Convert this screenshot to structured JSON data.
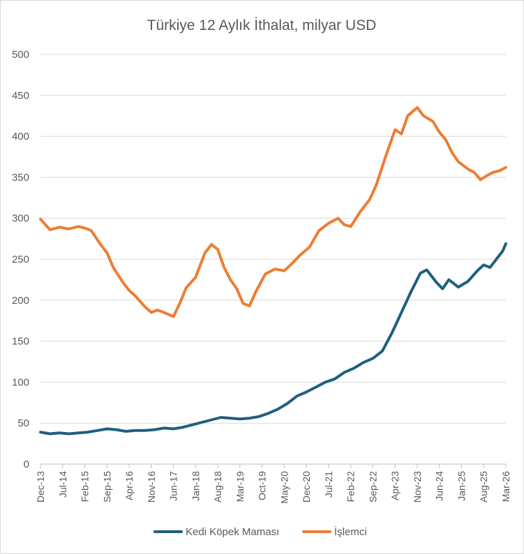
{
  "chart_data": {
    "type": "line",
    "title": "Türkiye 12 Aylık İthalat, milyar USD",
    "xlabel": "",
    "ylabel": "",
    "ylim": [
      0,
      500
    ],
    "yticks": [
      0,
      50,
      100,
      150,
      200,
      250,
      300,
      350,
      400,
      450,
      500
    ],
    "grid": true,
    "legend_position": "bottom",
    "x_start": "Dec-13",
    "x_end": "Mar-26",
    "x_tick_labels": [
      "Dec-13",
      "Jul-14",
      "Feb-15",
      "Sep-15",
      "Apr-16",
      "Nov-16",
      "Jun-17",
      "Jan-18",
      "Aug-18",
      "Mar-19",
      "Oct-19",
      "May-20",
      "Dec-20",
      "Jul-21",
      "Feb-22",
      "Sep-22",
      "Apr-23",
      "Nov-23",
      "Jun-24",
      "Jan-25",
      "Aug-25",
      "Mar-26"
    ],
    "series": [
      {
        "name": "Kedi Köpek Maması",
        "color": "#1f5f7f",
        "points": [
          [
            "Dec-13",
            39
          ],
          [
            "Mar-14",
            37
          ],
          [
            "Jun-14",
            38
          ],
          [
            "Sep-14",
            37
          ],
          [
            "Dec-14",
            38
          ],
          [
            "Mar-15",
            39
          ],
          [
            "Jun-15",
            41
          ],
          [
            "Sep-15",
            43
          ],
          [
            "Dec-15",
            42
          ],
          [
            "Mar-16",
            40
          ],
          [
            "Jun-16",
            41
          ],
          [
            "Sep-16",
            41
          ],
          [
            "Dec-16",
            42
          ],
          [
            "Mar-17",
            44
          ],
          [
            "Jun-17",
            43
          ],
          [
            "Sep-17",
            45
          ],
          [
            "Dec-17",
            48
          ],
          [
            "Mar-18",
            51
          ],
          [
            "Jun-18",
            54
          ],
          [
            "Sep-18",
            57
          ],
          [
            "Dec-18",
            56
          ],
          [
            "Mar-19",
            55
          ],
          [
            "Jun-19",
            56
          ],
          [
            "Sep-19",
            58
          ],
          [
            "Dec-19",
            62
          ],
          [
            "Mar-20",
            67
          ],
          [
            "Jun-20",
            74
          ],
          [
            "Sep-20",
            83
          ],
          [
            "Dec-20",
            88
          ],
          [
            "Mar-21",
            94
          ],
          [
            "Jun-21",
            100
          ],
          [
            "Sep-21",
            104
          ],
          [
            "Dec-21",
            112
          ],
          [
            "Mar-22",
            117
          ],
          [
            "Jun-22",
            124
          ],
          [
            "Sep-22",
            129
          ],
          [
            "Dec-22",
            138
          ],
          [
            "Mar-23",
            160
          ],
          [
            "Jun-23",
            185
          ],
          [
            "Sep-23",
            210
          ],
          [
            "Dec-23",
            233
          ],
          [
            "Feb-24",
            237
          ],
          [
            "May-24",
            222
          ],
          [
            "Jul-24",
            214
          ],
          [
            "Sep-24",
            225
          ],
          [
            "Dec-24",
            216
          ],
          [
            "Mar-25",
            223
          ],
          [
            "Jun-25",
            236
          ],
          [
            "Aug-25",
            243
          ],
          [
            "Oct-25",
            240
          ],
          [
            "Dec-25",
            250
          ],
          [
            "Feb-26",
            260
          ],
          [
            "Mar-26",
            269
          ]
        ]
      },
      {
        "name": "İşlemci",
        "color": "#ed7d31",
        "points": [
          [
            "Dec-13",
            299
          ],
          [
            "Mar-14",
            286
          ],
          [
            "Jun-14",
            289
          ],
          [
            "Sep-14",
            287
          ],
          [
            "Dec-14",
            290
          ],
          [
            "Feb-15",
            288
          ],
          [
            "Apr-15",
            285
          ],
          [
            "Jul-15",
            268
          ],
          [
            "Sep-15",
            258
          ],
          [
            "Nov-15",
            240
          ],
          [
            "Feb-16",
            222
          ],
          [
            "Apr-16",
            212
          ],
          [
            "Jun-16",
            205
          ],
          [
            "Sep-16",
            192
          ],
          [
            "Nov-16",
            185
          ],
          [
            "Jan-17",
            188
          ],
          [
            "Mar-17",
            185
          ],
          [
            "Jun-17",
            180
          ],
          [
            "Aug-17",
            196
          ],
          [
            "Oct-17",
            215
          ],
          [
            "Jan-18",
            228
          ],
          [
            "Apr-18",
            258
          ],
          [
            "Jun-18",
            268
          ],
          [
            "Aug-18",
            262
          ],
          [
            "Oct-18",
            240
          ],
          [
            "Dec-18",
            225
          ],
          [
            "Feb-19",
            214
          ],
          [
            "Apr-19",
            196
          ],
          [
            "Jun-19",
            193
          ],
          [
            "Aug-19",
            210
          ],
          [
            "Nov-19",
            232
          ],
          [
            "Feb-20",
            238
          ],
          [
            "May-20",
            236
          ],
          [
            "Jul-20",
            243
          ],
          [
            "Oct-20",
            255
          ],
          [
            "Jan-21",
            265
          ],
          [
            "Apr-21",
            285
          ],
          [
            "Jul-21",
            294
          ],
          [
            "Oct-21",
            300
          ],
          [
            "Dec-21",
            292
          ],
          [
            "Feb-22",
            290
          ],
          [
            "May-22",
            308
          ],
          [
            "Aug-22",
            323
          ],
          [
            "Oct-22",
            340
          ],
          [
            "Jan-23",
            375
          ],
          [
            "Apr-23",
            408
          ],
          [
            "Jun-23",
            403
          ],
          [
            "Aug-23",
            425
          ],
          [
            "Nov-23",
            435
          ],
          [
            "Jan-24",
            425
          ],
          [
            "Apr-24",
            418
          ],
          [
            "Jun-24",
            405
          ],
          [
            "Aug-24",
            396
          ],
          [
            "Oct-24",
            380
          ],
          [
            "Dec-24",
            369
          ],
          [
            "Mar-25",
            360
          ],
          [
            "May-25",
            356
          ],
          [
            "Jul-25",
            347
          ],
          [
            "Sep-25",
            352
          ],
          [
            "Nov-25",
            356
          ],
          [
            "Jan-26",
            358
          ],
          [
            "Mar-26",
            362
          ]
        ]
      }
    ]
  }
}
